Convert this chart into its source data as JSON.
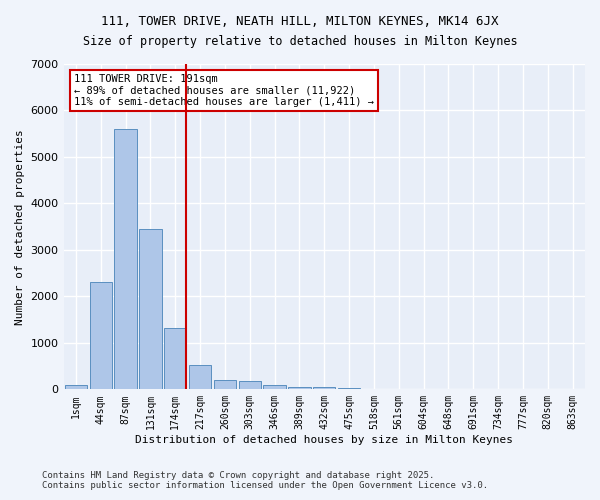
{
  "title1": "111, TOWER DRIVE, NEATH HILL, MILTON KEYNES, MK14 6JX",
  "title2": "Size of property relative to detached houses in Milton Keynes",
  "xlabel": "Distribution of detached houses by size in Milton Keynes",
  "ylabel": "Number of detached properties",
  "bar_labels": [
    "1sqm",
    "44sqm",
    "87sqm",
    "131sqm",
    "174sqm",
    "217sqm",
    "260sqm",
    "303sqm",
    "346sqm",
    "389sqm",
    "432sqm",
    "475sqm",
    "518sqm",
    "561sqm",
    "604sqm",
    "648sqm",
    "691sqm",
    "734sqm",
    "777sqm",
    "820sqm",
    "863sqm"
  ],
  "bar_values": [
    100,
    2300,
    5600,
    3450,
    1320,
    530,
    210,
    175,
    95,
    55,
    40,
    20,
    15,
    10,
    8,
    6,
    4,
    3,
    2,
    2,
    1
  ],
  "bar_color": "#aec6e8",
  "bar_edge_color": "#5a8fc0",
  "vline_x": 4,
  "vline_color": "#cc0000",
  "annotation_title": "111 TOWER DRIVE: 191sqm",
  "annotation_line1": "← 89% of detached houses are smaller (11,922)",
  "annotation_line2": "11% of semi-detached houses are larger (1,411) →",
  "annotation_box_color": "#cc0000",
  "ylim": [
    0,
    7000
  ],
  "background_color": "#e8eef8",
  "grid_color": "#ffffff",
  "footer1": "Contains HM Land Registry data © Crown copyright and database right 2025.",
  "footer2": "Contains public sector information licensed under the Open Government Licence v3.0."
}
